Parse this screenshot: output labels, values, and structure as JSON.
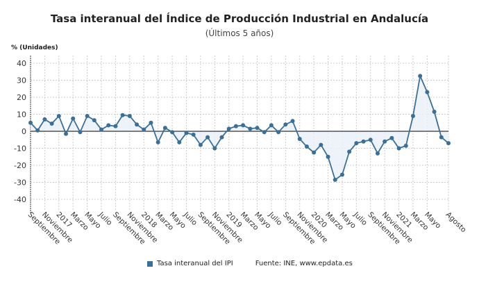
{
  "title": "Tasa interanual del Índice de Producción Industrial en Andalucía",
  "subtitle": "(Últimos 5 años)",
  "source": "Fuente: INE, www.epdata.es",
  "colors": {
    "series": "#3a6f98",
    "fill": "#e8f0f7",
    "zero_line": "#333333",
    "grid": "#cccccc"
  },
  "chart_data": {
    "type": "line",
    "title": "Tasa interanual del Índice de Producción Industrial en Andalucía",
    "subtitle": "(Últimos 5 años)",
    "ylabel": "% (Unidades)",
    "ylim": [
      -45,
      45
    ],
    "yticks": [
      40,
      30,
      20,
      10,
      0,
      -10,
      -20,
      -30,
      -40
    ],
    "grid": true,
    "legend_placement": "bottom",
    "x_tick_labels": [
      [
        0,
        "Septiembre"
      ],
      [
        2,
        "Noviembre"
      ],
      [
        4,
        "2017"
      ],
      [
        6,
        "Marzo"
      ],
      [
        8,
        "Mayo"
      ],
      [
        10,
        "Julio"
      ],
      [
        12,
        "Septiembre"
      ],
      [
        14,
        "Noviembre"
      ],
      [
        16,
        "2018"
      ],
      [
        18,
        "Marzo"
      ],
      [
        20,
        "Mayo"
      ],
      [
        22,
        "Julio"
      ],
      [
        24,
        "Septiembre"
      ],
      [
        26,
        "Noviembre"
      ],
      [
        28,
        "2019"
      ],
      [
        30,
        "Marzo"
      ],
      [
        32,
        "Mayo"
      ],
      [
        34,
        "Julio"
      ],
      [
        36,
        "Septiembre"
      ],
      [
        38,
        "Noviembre"
      ],
      [
        40,
        "2020"
      ],
      [
        42,
        "Marzo"
      ],
      [
        44,
        "Mayo"
      ],
      [
        46,
        "Julio"
      ],
      [
        48,
        "Septiembre"
      ],
      [
        50,
        "Noviembre"
      ],
      [
        52,
        "2021"
      ],
      [
        54,
        "Marzo"
      ],
      [
        56,
        "Mayo"
      ],
      [
        59,
        "Agosto"
      ]
    ],
    "series": [
      {
        "name": "Tasa interanual del IPI",
        "x": [
          "2016-09",
          "2016-10",
          "2016-11",
          "2016-12",
          "2017-01",
          "2017-02",
          "2017-03",
          "2017-04",
          "2017-05",
          "2017-06",
          "2017-07",
          "2017-08",
          "2017-09",
          "2017-10",
          "2017-11",
          "2017-12",
          "2018-01",
          "2018-02",
          "2018-03",
          "2018-04",
          "2018-05",
          "2018-06",
          "2018-07",
          "2018-08",
          "2018-09",
          "2018-10",
          "2018-11",
          "2018-12",
          "2019-01",
          "2019-02",
          "2019-03",
          "2019-04",
          "2019-05",
          "2019-06",
          "2019-07",
          "2019-08",
          "2019-09",
          "2019-10",
          "2019-11",
          "2019-12",
          "2020-01",
          "2020-02",
          "2020-03",
          "2020-04",
          "2020-05",
          "2020-06",
          "2020-07",
          "2020-08",
          "2020-09",
          "2020-10",
          "2020-11",
          "2020-12",
          "2021-01",
          "2021-02",
          "2021-03",
          "2021-04",
          "2021-05",
          "2021-06",
          "2021-07",
          "2021-08"
        ],
        "values": [
          5,
          0.5,
          7,
          4.5,
          9,
          -1.5,
          7.5,
          -0.5,
          9,
          6.5,
          1,
          3.5,
          3,
          9.5,
          9,
          4,
          1,
          5,
          -6.5,
          2,
          -0.5,
          -6.5,
          -1,
          -2,
          -8,
          -3.5,
          -10,
          -3.5,
          1.5,
          3,
          3.5,
          1.5,
          2,
          -0.5,
          3.5,
          -0.5,
          4,
          6,
          -4.5,
          -9,
          -12.5,
          -8,
          -15,
          -28.5,
          -25.5,
          -12,
          -7,
          -6,
          -5,
          -13,
          -6,
          -4,
          -10,
          -8.5,
          9,
          32.5,
          23,
          11.5,
          -3.5,
          -7
        ]
      }
    ]
  }
}
